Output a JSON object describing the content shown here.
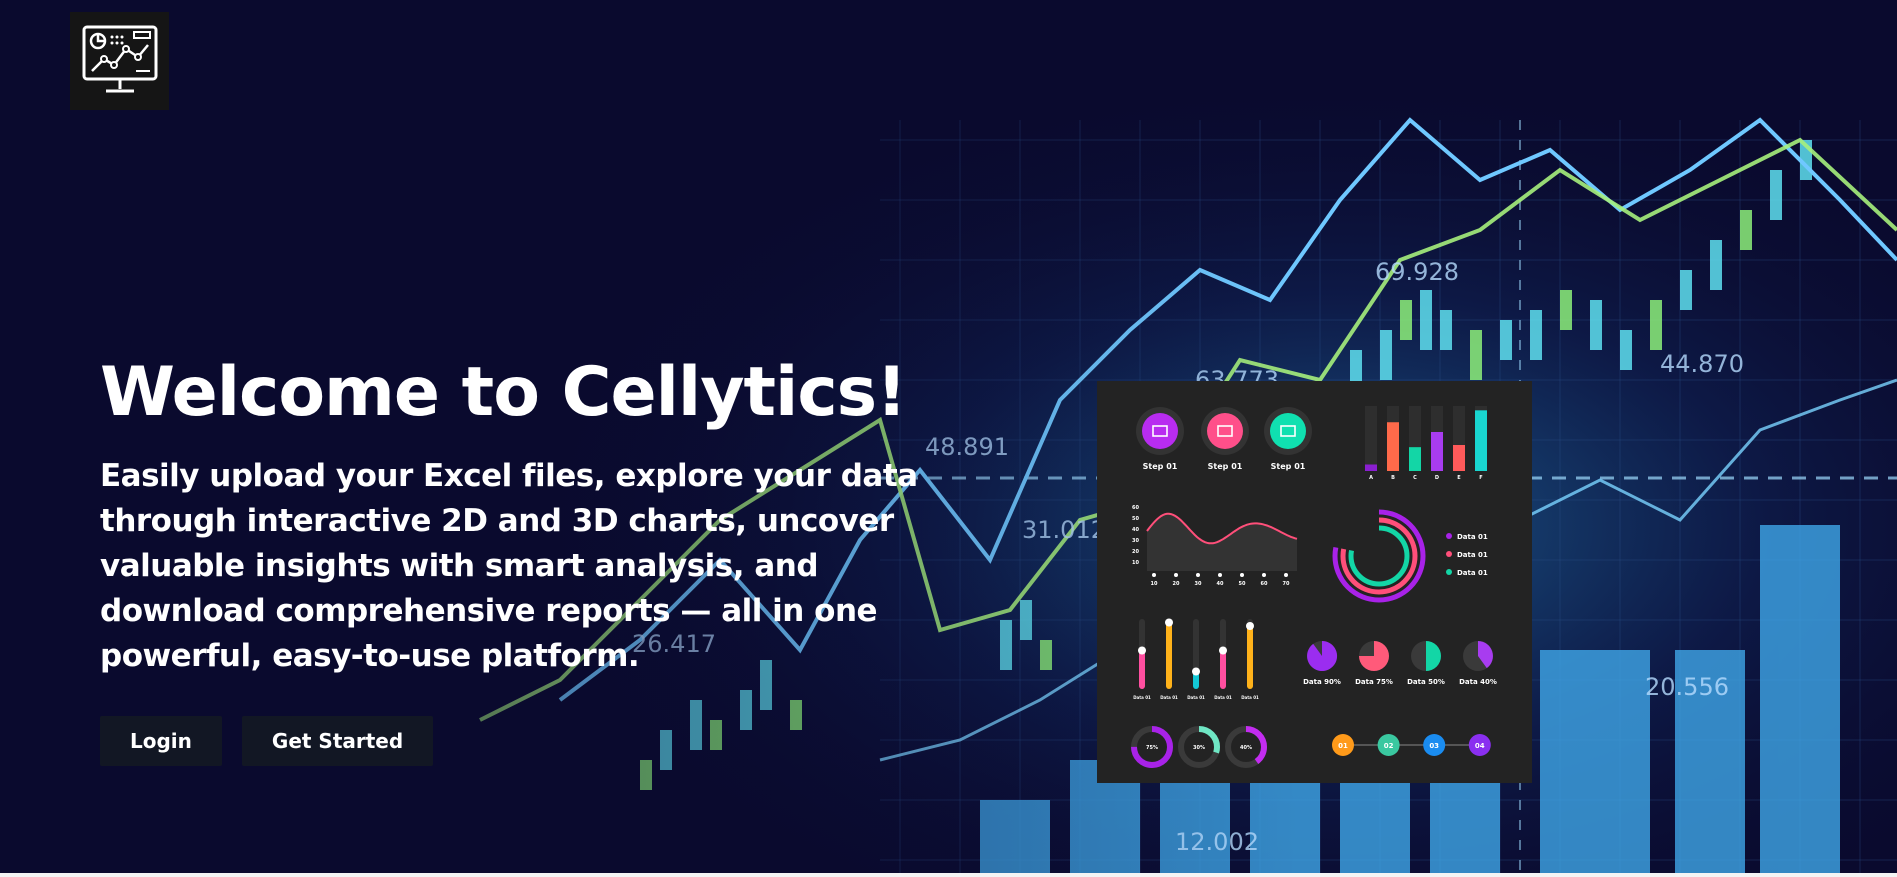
{
  "hero": {
    "title": "Welcome to Cellytics!",
    "subtitle": "Easily upload your Excel files, explore your data through interactive 2D and 3D charts, uncover valuable insights with smart analysis, and download comprehensive reports — all in one powerful, easy-to-use platform."
  },
  "buttons": {
    "login": "Login",
    "get_started": "Get Started"
  },
  "background_labels": [
    "69.928",
    "63.773",
    "48.891",
    "31.012",
    "26.417",
    "44.870",
    "20.556",
    "12.002"
  ],
  "infographic": {
    "steps": [
      "Step 01",
      "Step 01",
      "Step 01"
    ],
    "bar_labels": [
      "A",
      "B",
      "C",
      "D",
      "E",
      "F"
    ],
    "bar_values": [
      6,
      45,
      22,
      36,
      24,
      56
    ],
    "wave_y_ticks": [
      "60",
      "50",
      "40",
      "30",
      "20",
      "10"
    ],
    "wave_x_ticks": [
      "10",
      "20",
      "30",
      "40",
      "50",
      "60",
      "70"
    ],
    "ring_legend": [
      "Data 01",
      "Data 01",
      "Data 01"
    ],
    "slider_labels": [
      "Data 01",
      "Data 01",
      "Data 01",
      "Data 01",
      "Data 01"
    ],
    "slider_levels": [
      0.55,
      0.95,
      0.25,
      0.55,
      0.9
    ],
    "pies": [
      {
        "label": "Data 90%",
        "value": 0.9,
        "color": "#9b2df0"
      },
      {
        "label": "Data 75%",
        "value": 0.75,
        "color": "#ff5a7a"
      },
      {
        "label": "Data 50%",
        "value": 0.5,
        "color": "#13d6a6"
      },
      {
        "label": "Data 40%",
        "value": 0.4,
        "color": "#a83cf0"
      }
    ],
    "rings": [
      {
        "label": "75%",
        "value": 0.75,
        "color": "#a822e8"
      },
      {
        "label": "30%",
        "value": 0.3,
        "color": "#6fe6c4"
      },
      {
        "label": "40%",
        "value": 0.4,
        "color": "#c32cf0"
      }
    ],
    "dots": [
      "01",
      "02",
      "03",
      "04"
    ]
  },
  "colors": {
    "background": "#0a0a2e",
    "panel": "#232323",
    "button": "#121724",
    "accent_cyan": "#4fd6ff",
    "accent_green": "#8cf07a"
  },
  "icons": {
    "logo": "monitor-chart-icon",
    "steps": [
      "briefcase-icon",
      "megaphone-icon",
      "lightbulb-icon"
    ]
  }
}
